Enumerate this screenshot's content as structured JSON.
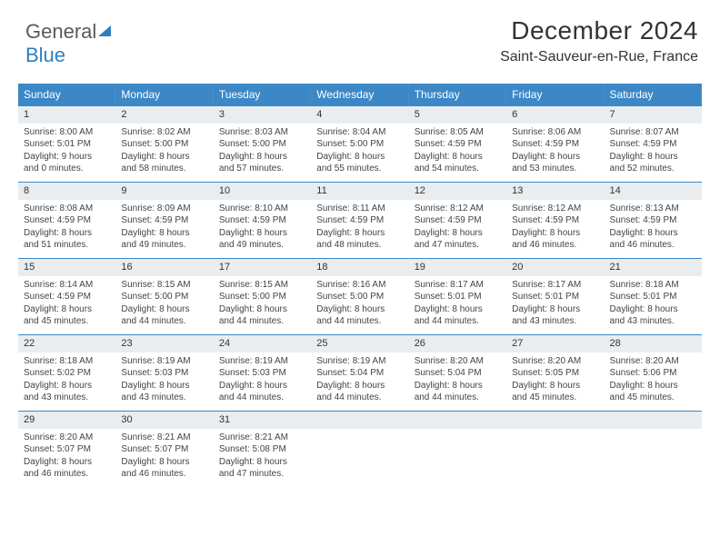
{
  "logo": {
    "part1": "General",
    "part2": "Blue"
  },
  "header": {
    "title": "December 2024",
    "subtitle": "Saint-Sauveur-en-Rue, France"
  },
  "colors": {
    "header_bg": "#3c88c6",
    "daynum_bg": "#e9edef",
    "border": "#3c88c6"
  },
  "weekdays": [
    "Sunday",
    "Monday",
    "Tuesday",
    "Wednesday",
    "Thursday",
    "Friday",
    "Saturday"
  ],
  "weeks": [
    [
      {
        "n": "1",
        "sr": "Sunrise: 8:00 AM",
        "ss": "Sunset: 5:01 PM",
        "d1": "Daylight: 9 hours",
        "d2": "and 0 minutes."
      },
      {
        "n": "2",
        "sr": "Sunrise: 8:02 AM",
        "ss": "Sunset: 5:00 PM",
        "d1": "Daylight: 8 hours",
        "d2": "and 58 minutes."
      },
      {
        "n": "3",
        "sr": "Sunrise: 8:03 AM",
        "ss": "Sunset: 5:00 PM",
        "d1": "Daylight: 8 hours",
        "d2": "and 57 minutes."
      },
      {
        "n": "4",
        "sr": "Sunrise: 8:04 AM",
        "ss": "Sunset: 5:00 PM",
        "d1": "Daylight: 8 hours",
        "d2": "and 55 minutes."
      },
      {
        "n": "5",
        "sr": "Sunrise: 8:05 AM",
        "ss": "Sunset: 4:59 PM",
        "d1": "Daylight: 8 hours",
        "d2": "and 54 minutes."
      },
      {
        "n": "6",
        "sr": "Sunrise: 8:06 AM",
        "ss": "Sunset: 4:59 PM",
        "d1": "Daylight: 8 hours",
        "d2": "and 53 minutes."
      },
      {
        "n": "7",
        "sr": "Sunrise: 8:07 AM",
        "ss": "Sunset: 4:59 PM",
        "d1": "Daylight: 8 hours",
        "d2": "and 52 minutes."
      }
    ],
    [
      {
        "n": "8",
        "sr": "Sunrise: 8:08 AM",
        "ss": "Sunset: 4:59 PM",
        "d1": "Daylight: 8 hours",
        "d2": "and 51 minutes."
      },
      {
        "n": "9",
        "sr": "Sunrise: 8:09 AM",
        "ss": "Sunset: 4:59 PM",
        "d1": "Daylight: 8 hours",
        "d2": "and 49 minutes."
      },
      {
        "n": "10",
        "sr": "Sunrise: 8:10 AM",
        "ss": "Sunset: 4:59 PM",
        "d1": "Daylight: 8 hours",
        "d2": "and 49 minutes."
      },
      {
        "n": "11",
        "sr": "Sunrise: 8:11 AM",
        "ss": "Sunset: 4:59 PM",
        "d1": "Daylight: 8 hours",
        "d2": "and 48 minutes."
      },
      {
        "n": "12",
        "sr": "Sunrise: 8:12 AM",
        "ss": "Sunset: 4:59 PM",
        "d1": "Daylight: 8 hours",
        "d2": "and 47 minutes."
      },
      {
        "n": "13",
        "sr": "Sunrise: 8:12 AM",
        "ss": "Sunset: 4:59 PM",
        "d1": "Daylight: 8 hours",
        "d2": "and 46 minutes."
      },
      {
        "n": "14",
        "sr": "Sunrise: 8:13 AM",
        "ss": "Sunset: 4:59 PM",
        "d1": "Daylight: 8 hours",
        "d2": "and 46 minutes."
      }
    ],
    [
      {
        "n": "15",
        "sr": "Sunrise: 8:14 AM",
        "ss": "Sunset: 4:59 PM",
        "d1": "Daylight: 8 hours",
        "d2": "and 45 minutes."
      },
      {
        "n": "16",
        "sr": "Sunrise: 8:15 AM",
        "ss": "Sunset: 5:00 PM",
        "d1": "Daylight: 8 hours",
        "d2": "and 44 minutes."
      },
      {
        "n": "17",
        "sr": "Sunrise: 8:15 AM",
        "ss": "Sunset: 5:00 PM",
        "d1": "Daylight: 8 hours",
        "d2": "and 44 minutes."
      },
      {
        "n": "18",
        "sr": "Sunrise: 8:16 AM",
        "ss": "Sunset: 5:00 PM",
        "d1": "Daylight: 8 hours",
        "d2": "and 44 minutes."
      },
      {
        "n": "19",
        "sr": "Sunrise: 8:17 AM",
        "ss": "Sunset: 5:01 PM",
        "d1": "Daylight: 8 hours",
        "d2": "and 44 minutes."
      },
      {
        "n": "20",
        "sr": "Sunrise: 8:17 AM",
        "ss": "Sunset: 5:01 PM",
        "d1": "Daylight: 8 hours",
        "d2": "and 43 minutes."
      },
      {
        "n": "21",
        "sr": "Sunrise: 8:18 AM",
        "ss": "Sunset: 5:01 PM",
        "d1": "Daylight: 8 hours",
        "d2": "and 43 minutes."
      }
    ],
    [
      {
        "n": "22",
        "sr": "Sunrise: 8:18 AM",
        "ss": "Sunset: 5:02 PM",
        "d1": "Daylight: 8 hours",
        "d2": "and 43 minutes."
      },
      {
        "n": "23",
        "sr": "Sunrise: 8:19 AM",
        "ss": "Sunset: 5:03 PM",
        "d1": "Daylight: 8 hours",
        "d2": "and 43 minutes."
      },
      {
        "n": "24",
        "sr": "Sunrise: 8:19 AM",
        "ss": "Sunset: 5:03 PM",
        "d1": "Daylight: 8 hours",
        "d2": "and 44 minutes."
      },
      {
        "n": "25",
        "sr": "Sunrise: 8:19 AM",
        "ss": "Sunset: 5:04 PM",
        "d1": "Daylight: 8 hours",
        "d2": "and 44 minutes."
      },
      {
        "n": "26",
        "sr": "Sunrise: 8:20 AM",
        "ss": "Sunset: 5:04 PM",
        "d1": "Daylight: 8 hours",
        "d2": "and 44 minutes."
      },
      {
        "n": "27",
        "sr": "Sunrise: 8:20 AM",
        "ss": "Sunset: 5:05 PM",
        "d1": "Daylight: 8 hours",
        "d2": "and 45 minutes."
      },
      {
        "n": "28",
        "sr": "Sunrise: 8:20 AM",
        "ss": "Sunset: 5:06 PM",
        "d1": "Daylight: 8 hours",
        "d2": "and 45 minutes."
      }
    ],
    [
      {
        "n": "29",
        "sr": "Sunrise: 8:20 AM",
        "ss": "Sunset: 5:07 PM",
        "d1": "Daylight: 8 hours",
        "d2": "and 46 minutes."
      },
      {
        "n": "30",
        "sr": "Sunrise: 8:21 AM",
        "ss": "Sunset: 5:07 PM",
        "d1": "Daylight: 8 hours",
        "d2": "and 46 minutes."
      },
      {
        "n": "31",
        "sr": "Sunrise: 8:21 AM",
        "ss": "Sunset: 5:08 PM",
        "d1": "Daylight: 8 hours",
        "d2": "and 47 minutes."
      },
      {
        "empty": true
      },
      {
        "empty": true
      },
      {
        "empty": true
      },
      {
        "empty": true
      }
    ]
  ]
}
